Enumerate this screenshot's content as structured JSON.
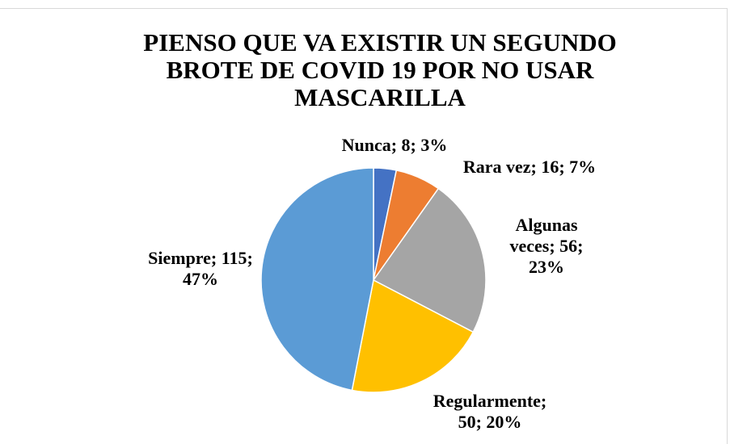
{
  "chart_data": {
    "type": "pie",
    "title": "PIENSO QUE VA EXISTIR UN SEGUNDO BROTE DE COVID 19 POR NO USAR MASCARILLA",
    "categories": [
      "Nunca",
      "Rara vez",
      "Algunas veces",
      "Regularmente",
      "Siempre"
    ],
    "values": [
      8,
      16,
      56,
      50,
      115
    ],
    "value_labels": [
      "Nunca; 8; 3%",
      "Rara vez; 16; 7%",
      "Algunas veces; 56; 23%",
      "Regularmente; 50; 20%",
      "Siempre; 115; 47%"
    ],
    "colors": [
      "#4472c4",
      "#ed7d31",
      "#a5a5a5",
      "#ffc000",
      "#5b9bd5"
    ]
  }
}
